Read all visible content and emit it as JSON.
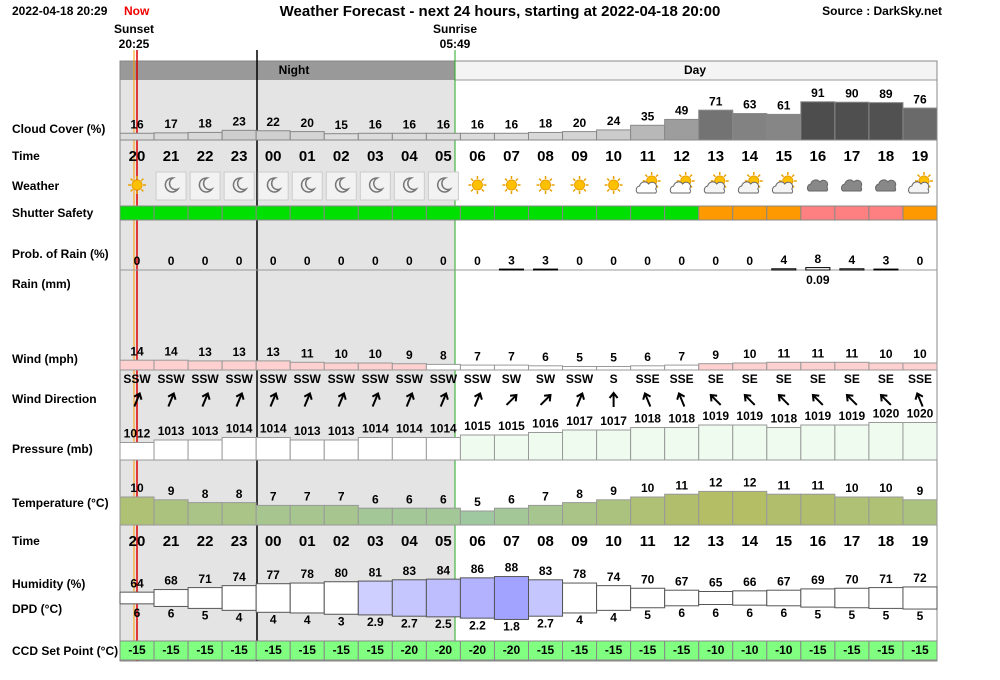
{
  "header": {
    "timestamp": "2022-04-18 20:29",
    "now": "Now",
    "title": "Weather Forecast - next 24 hours, starting at 2022-04-18 20:00",
    "source": "Source : DarkSky.net",
    "sunset": {
      "label": "Sunset",
      "time": "20:25"
    },
    "sunrise": {
      "label": "Sunrise",
      "time": "05:49"
    },
    "night": "Night",
    "day": "Day"
  },
  "table": {
    "labels": {
      "cloud_cover": "Cloud Cover (%)",
      "time": "Time",
      "weather": "Weather",
      "shutter_safety": "Shutter Safety",
      "prob_rain": "Prob. of Rain (%)",
      "rain": "Rain (mm)",
      "wind": "Wind (mph)",
      "wind_direction": "Wind Direction",
      "pressure": "Pressure (mb)",
      "temperature": "Temperature (°C)",
      "humidity": "Humidity (%)",
      "dpd": "DPD (°C)",
      "ccd": "CCD Set Point (°C)"
    },
    "hours": [
      "20",
      "21",
      "22",
      "23",
      "00",
      "01",
      "02",
      "03",
      "04",
      "05",
      "06",
      "07",
      "08",
      "09",
      "10",
      "11",
      "12",
      "13",
      "14",
      "15",
      "16",
      "17",
      "18",
      "19"
    ],
    "cloud_cover": [
      16,
      17,
      18,
      23,
      22,
      20,
      15,
      16,
      16,
      16,
      16,
      16,
      18,
      20,
      24,
      35,
      49,
      71,
      63,
      61,
      91,
      90,
      89,
      76
    ],
    "prob_rain": [
      0,
      0,
      0,
      0,
      0,
      0,
      0,
      0,
      0,
      0,
      0,
      3,
      3,
      0,
      0,
      0,
      0,
      0,
      0,
      4,
      8,
      4,
      3,
      0
    ],
    "rain": [
      null,
      null,
      null,
      null,
      null,
      null,
      null,
      null,
      null,
      null,
      null,
      null,
      null,
      null,
      null,
      null,
      null,
      null,
      null,
      null,
      0.09,
      null,
      null,
      null
    ],
    "wind": [
      14,
      14,
      13,
      13,
      13,
      11,
      10,
      10,
      9,
      8,
      7,
      7,
      6,
      5,
      5,
      6,
      7,
      9,
      10,
      11,
      11,
      11,
      10,
      10
    ],
    "wind_direction": [
      "SSW",
      "SSW",
      "SSW",
      "SSW",
      "SSW",
      "SSW",
      "SSW",
      "SSW",
      "SSW",
      "SSW",
      "SSW",
      "SW",
      "SW",
      "SSW",
      "S",
      "SSE",
      "SSE",
      "SE",
      "SE",
      "SE",
      "SE",
      "SE",
      "SE",
      "SSE"
    ],
    "pressure": [
      1012,
      1013,
      1013,
      1014,
      1014,
      1013,
      1013,
      1014,
      1014,
      1014,
      1015,
      1015,
      1016,
      1017,
      1017,
      1018,
      1018,
      1019,
      1019,
      1018,
      1019,
      1019,
      1020,
      1020
    ],
    "temperature": [
      10,
      9,
      8,
      8,
      7,
      7,
      7,
      6,
      6,
      6,
      5,
      6,
      7,
      8,
      9,
      10,
      11,
      12,
      12,
      11,
      11,
      10,
      10,
      9
    ],
    "humidity": [
      64,
      68,
      71,
      74,
      77,
      78,
      80,
      81,
      83,
      84,
      86,
      88,
      83,
      78,
      74,
      70,
      67,
      65,
      66,
      67,
      69,
      70,
      71,
      72
    ],
    "dpd": [
      6,
      6,
      5,
      4,
      4,
      4,
      3,
      2.9,
      2.7,
      2.5,
      2.2,
      1.8,
      2.7,
      4,
      4,
      5,
      6,
      6,
      6,
      6,
      5,
      5,
      5,
      5
    ],
    "ccd": [
      -15,
      -15,
      -15,
      -15,
      -15,
      -15,
      -15,
      -15,
      -20,
      -20,
      -20,
      -20,
      -15,
      -15,
      -15,
      -15,
      -15,
      -10,
      -10,
      -10,
      -15,
      -15,
      -15,
      -15
    ]
  }
}
